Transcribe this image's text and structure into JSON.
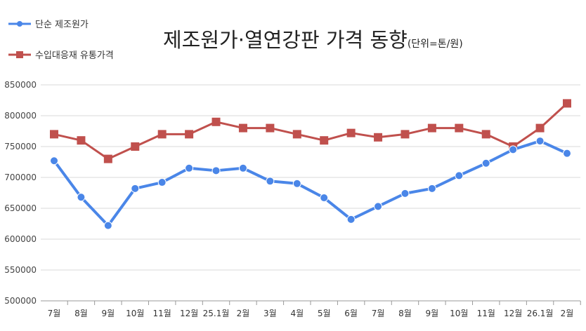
{
  "chart_data": {
    "type": "line",
    "title": "제조원가·열연강판 가격 동향",
    "unit": "(단위=톤/원)",
    "categories": [
      "7월",
      "8월",
      "9월",
      "10월",
      "11월",
      "12월",
      "25.1월",
      "2월",
      "3월",
      "4월",
      "5월",
      "6월",
      "7월",
      "8월",
      "9월",
      "10월",
      "11월",
      "12월",
      "26.1월",
      "2월"
    ],
    "ylim": [
      500000,
      850000
    ],
    "yticks": [
      500000,
      550000,
      600000,
      650000,
      700000,
      750000,
      800000,
      850000
    ],
    "ytick_labels": [
      "500000",
      "550000",
      "600000",
      "650000",
      "700000",
      "750000",
      "800000",
      "850000"
    ],
    "grid": true,
    "legend_position": "top-left",
    "series": [
      {
        "name": "단순 제조원가",
        "color": "#4a86e8",
        "marker": "circle",
        "values": [
          727000,
          668000,
          622000,
          682000,
          692000,
          715000,
          711000,
          715000,
          694000,
          690000,
          667000,
          632000,
          653000,
          674000,
          682000,
          703000,
          723000,
          745000,
          759000,
          739000
        ]
      },
      {
        "name": "수입대응재 유통가격",
        "color": "#c0504d",
        "marker": "square",
        "values": [
          770000,
          760000,
          730000,
          750000,
          770000,
          770000,
          790000,
          780000,
          780000,
          770000,
          760000,
          772000,
          765000,
          770000,
          780000,
          780000,
          770000,
          750000,
          780000,
          820000
        ]
      }
    ]
  }
}
